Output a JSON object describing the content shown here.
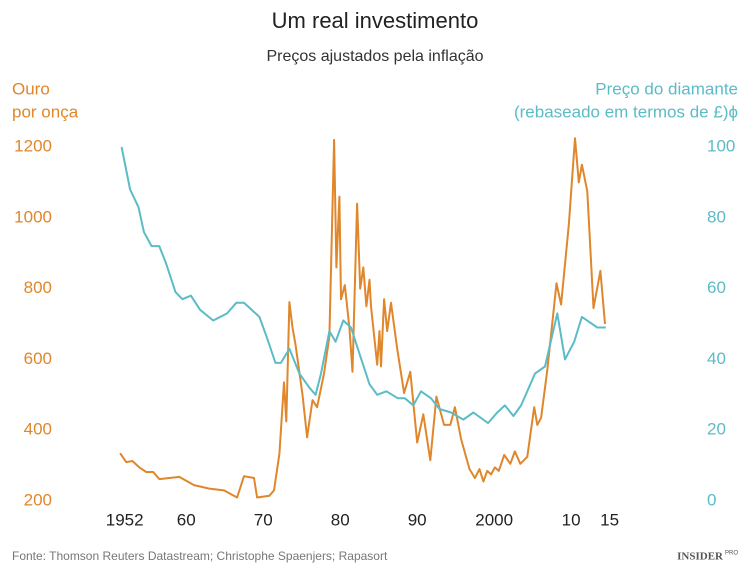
{
  "chart_data": {
    "type": "line",
    "title": "Um real investimento",
    "subtitle": "Preços ajustados pela inflação",
    "ylabel": [
      "Ouro",
      "por onça"
    ],
    "y2label": [
      "Preço do diamante",
      "(rebaseado em termos de £)ϕ"
    ],
    "source": "Fonte: Thomson Reuters Datastream; Christophe Spaenjers; Rapasort",
    "brand": "INSIDER",
    "brand_sup": "PRO",
    "xlim": [
      1941,
      2027
    ],
    "xticks": [
      1952,
      {
        "value": 1960,
        "label": "60"
      },
      {
        "value": 1970,
        "label": "70"
      },
      {
        "value": 1980,
        "label": "80"
      },
      {
        "value": 1990,
        "label": "90"
      },
      2000,
      {
        "value": 2010,
        "label": "10"
      },
      {
        "value": 2015,
        "label": "15"
      }
    ],
    "ylim": [
      200,
      1200
    ],
    "yticks": [
      200,
      400,
      600,
      800,
      1000,
      1200
    ],
    "y2lim": [
      0,
      100
    ],
    "y2ticks": [
      0,
      20,
      40,
      60,
      80,
      100
    ],
    "grid": false,
    "series": [
      {
        "name": "Ouro",
        "color": "#e0862b",
        "axis": "y",
        "x": [
          1951.4,
          1952.2,
          1953.0,
          1953.9,
          1954.8,
          1955.7,
          1956.5,
          1957.8,
          1959.1,
          1961.0,
          1963.0,
          1964.9,
          1966.6,
          1967.5,
          1968.8,
          1969.2,
          1970.8,
          1971.4,
          1972.1,
          1972.7,
          1973.0,
          1973.4,
          1973.8,
          1974.2,
          1975.1,
          1975.7,
          1976.4,
          1977.0,
          1977.9,
          1978.6,
          1979.2,
          1979.5,
          1979.9,
          1980.1,
          1980.6,
          1981.2,
          1981.6,
          1982.2,
          1982.6,
          1983.0,
          1983.4,
          1983.8,
          1984.0,
          1984.8,
          1985.1,
          1985.3,
          1985.7,
          1986.1,
          1986.6,
          1987.4,
          1988.3,
          1989.1,
          1990.0,
          1990.8,
          1991.7,
          1992.5,
          1993.5,
          1994.3,
          1994.9,
          1995.7,
          1996.8,
          1997.5,
          1998.1,
          1998.6,
          1999.1,
          1999.6,
          2000.1,
          2000.6,
          2001.3,
          2002.1,
          2002.7,
          2003.4,
          2004.3,
          2005.2,
          2005.6,
          2006.1,
          2006.9,
          2008.1,
          2008.7,
          2009.7,
          2010.5,
          2011.0,
          2011.4,
          2012.1,
          2012.9,
          2013.8,
          2014.4
        ],
        "values": [
          335,
          310,
          313,
          295,
          282,
          282,
          262,
          265,
          268,
          245,
          235,
          230,
          210,
          270,
          265,
          210,
          215,
          230,
          333,
          535,
          425,
          762,
          690,
          640,
          500,
          380,
          485,
          465,
          560,
          665,
          1220,
          860,
          1060,
          770,
          810,
          690,
          565,
          1040,
          800,
          860,
          750,
          825,
          750,
          585,
          680,
          580,
          770,
          680,
          760,
          630,
          505,
          565,
          365,
          445,
          315,
          495,
          415,
          415,
          465,
          375,
          290,
          265,
          290,
          255,
          285,
          275,
          295,
          285,
          330,
          305,
          340,
          305,
          325,
          465,
          415,
          435,
          570,
          815,
          755,
          980,
          1225,
          1100,
          1150,
          1075,
          745,
          850,
          700
        ]
      },
      {
        "name": "Preço do diamante",
        "color": "#5bbcc7",
        "axis": "y2",
        "x": [
          1951.6,
          1952.7,
          1953.8,
          1954.5,
          1955.5,
          1956.5,
          1957.4,
          1958.6,
          1959.5,
          1960.6,
          1961.8,
          1963.5,
          1965.3,
          1966.5,
          1967.5,
          1969.5,
          1970.5,
          1971.6,
          1972.3,
          1973.4,
          1974.7,
          1976.0,
          1976.8,
          1977.5,
          1978.6,
          1979.4,
          1980.4,
          1981.4,
          1982.6,
          1983.8,
          1984.8,
          1986.0,
          1987.5,
          1988.4,
          1989.5,
          1990.5,
          1991.8,
          1992.9,
          1994.4,
          1996.0,
          1997.3,
          1999.2,
          2000.4,
          2001.4,
          2002.5,
          2003.5,
          2005.3,
          2006.6,
          2008.2,
          2009.2,
          2010.4,
          2011.4,
          2013.4,
          2014.5
        ],
        "values": [
          100,
          88,
          83,
          76,
          72,
          72,
          67,
          59,
          57,
          58,
          54,
          51,
          53,
          56,
          56,
          52,
          46,
          39,
          39,
          43,
          36,
          32,
          30,
          36,
          48,
          45,
          51,
          49,
          41,
          33,
          30,
          31,
          29,
          29,
          27,
          31,
          29,
          26,
          25,
          23,
          25,
          22,
          25,
          27,
          24,
          27,
          36,
          38,
          53,
          40,
          45,
          52,
          49,
          49
        ]
      }
    ]
  }
}
